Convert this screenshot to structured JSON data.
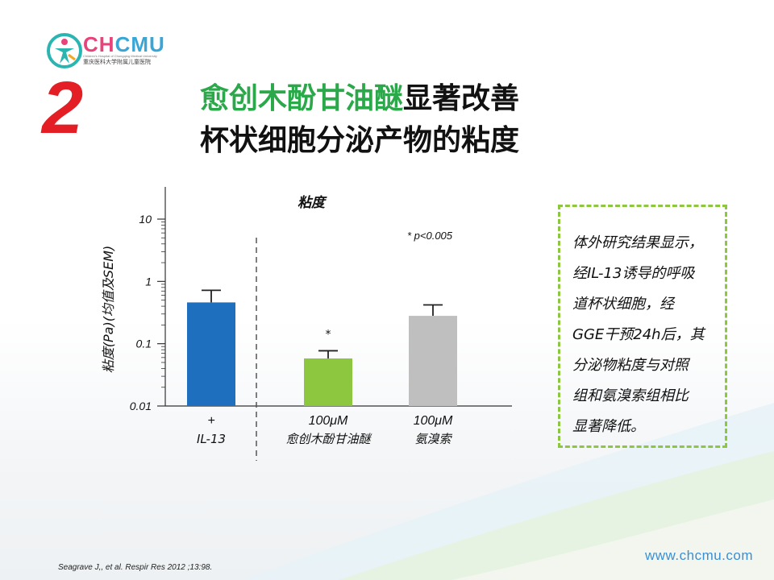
{
  "logo": {
    "brand_ch": "CH",
    "brand_cmu": "CMU",
    "brand_sub_en": "Children's Hospital of Chongqing Medical University",
    "brand_sub_cn": "重庆医科大学附属儿童医院",
    "colors": {
      "ch": "#e8437a",
      "cmu": "#3aa6d6"
    }
  },
  "section_number": "2",
  "title": {
    "line1_green": "愈创木酚甘油醚",
    "line1_black": "显著改善",
    "line2": "杯状细胞分泌产物的粘度"
  },
  "chart_data": {
    "type": "bar",
    "title": "粘度",
    "ylabel": "粘度(Pa)(均值及SEM)",
    "yscale": "log",
    "ylim": [
      0.01,
      10
    ],
    "yticks": [
      {
        "value": 10,
        "label": "10"
      },
      {
        "value": 1,
        "label": "1"
      },
      {
        "value": 0.1,
        "label": "0.1"
      },
      {
        "value": 0.01,
        "label": "0.01"
      }
    ],
    "annotation": "* p<0.005",
    "categories": [
      {
        "line1": "+",
        "line2": "IL-13"
      },
      {
        "line1": "100μM",
        "line2": "愈创木酚甘油醚"
      },
      {
        "line1": "100μM",
        "line2": "氨溴索"
      }
    ],
    "values": [
      0.46,
      0.058,
      0.28
    ],
    "errors": [
      0.72,
      0.077,
      0.42
    ],
    "bar_colors": [
      "#1f6fbf",
      "#8dc63f",
      "#bfbfbf"
    ],
    "significance": [
      "",
      "*",
      ""
    ],
    "grid": false
  },
  "note": {
    "lines": [
      "体外研究结果显示，",
      "经IL-13诱导的呼吸",
      "道杯状细胞，经",
      "GGE干预24h后，其",
      "分泌物粘度与对照",
      "组和氨溴索组相比",
      "显著降低。"
    ]
  },
  "citation": "Seagrave J,, et al. Respir Res 2012 ;13:98.",
  "url": "www.chcmu.com"
}
